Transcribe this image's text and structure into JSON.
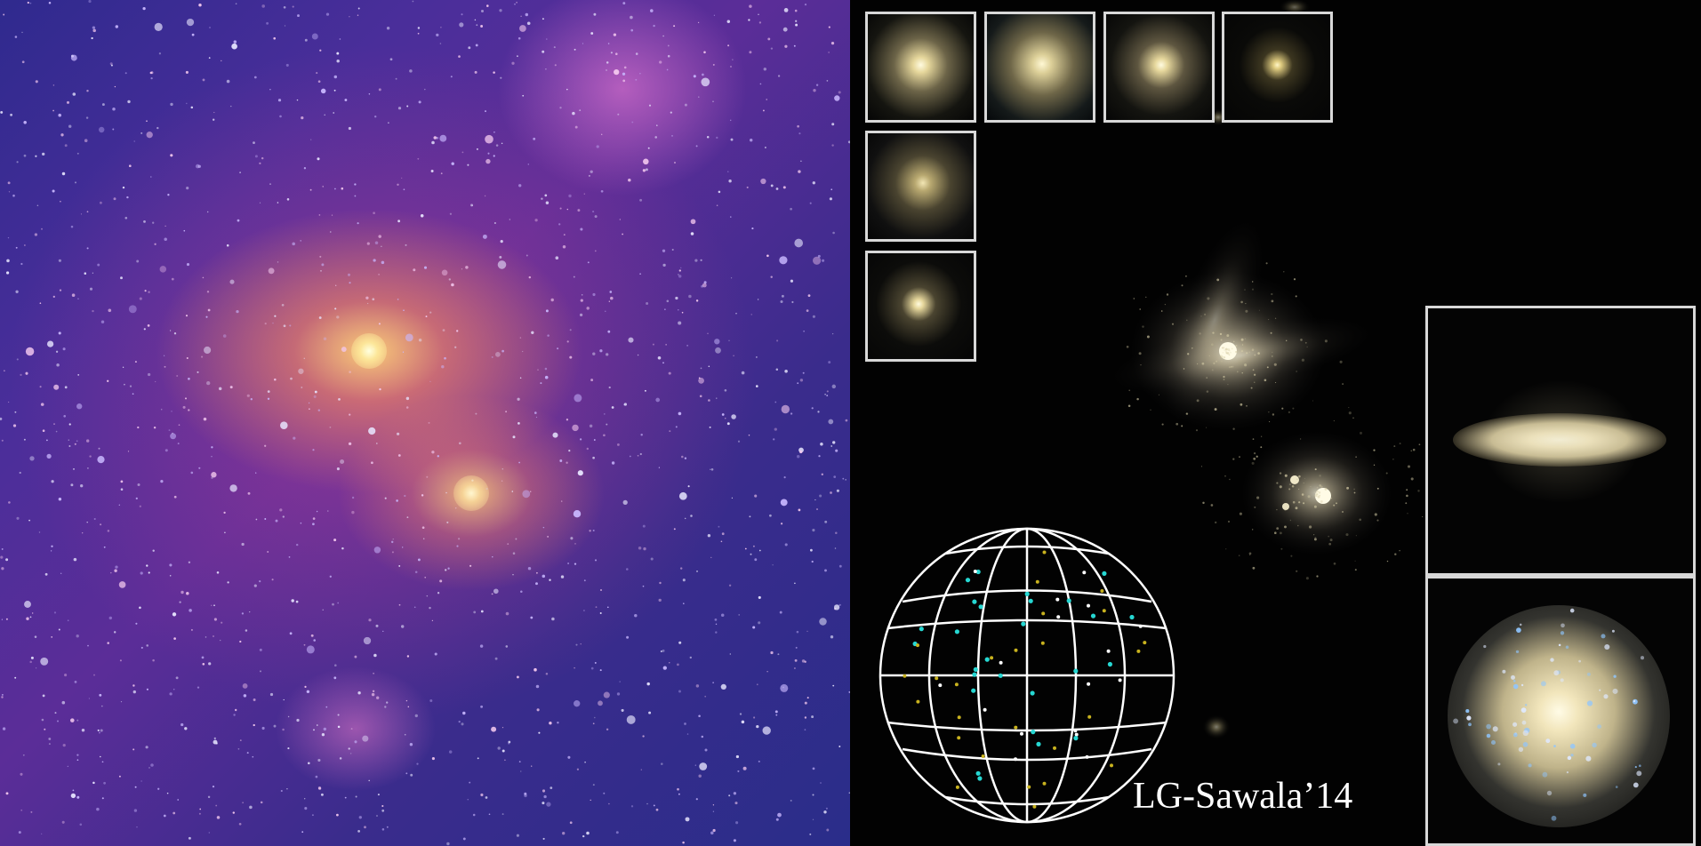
{
  "image": {
    "credit_label": "LG-Sawala’14"
  },
  "colors": {
    "left_background": "#3a2c8c",
    "right_background": "#020202",
    "inset_border": "#d8d8d8",
    "globe_lines": "#ffffff",
    "marker_cyan": "#26d7d2",
    "marker_yellow": "#c8b21e"
  }
}
